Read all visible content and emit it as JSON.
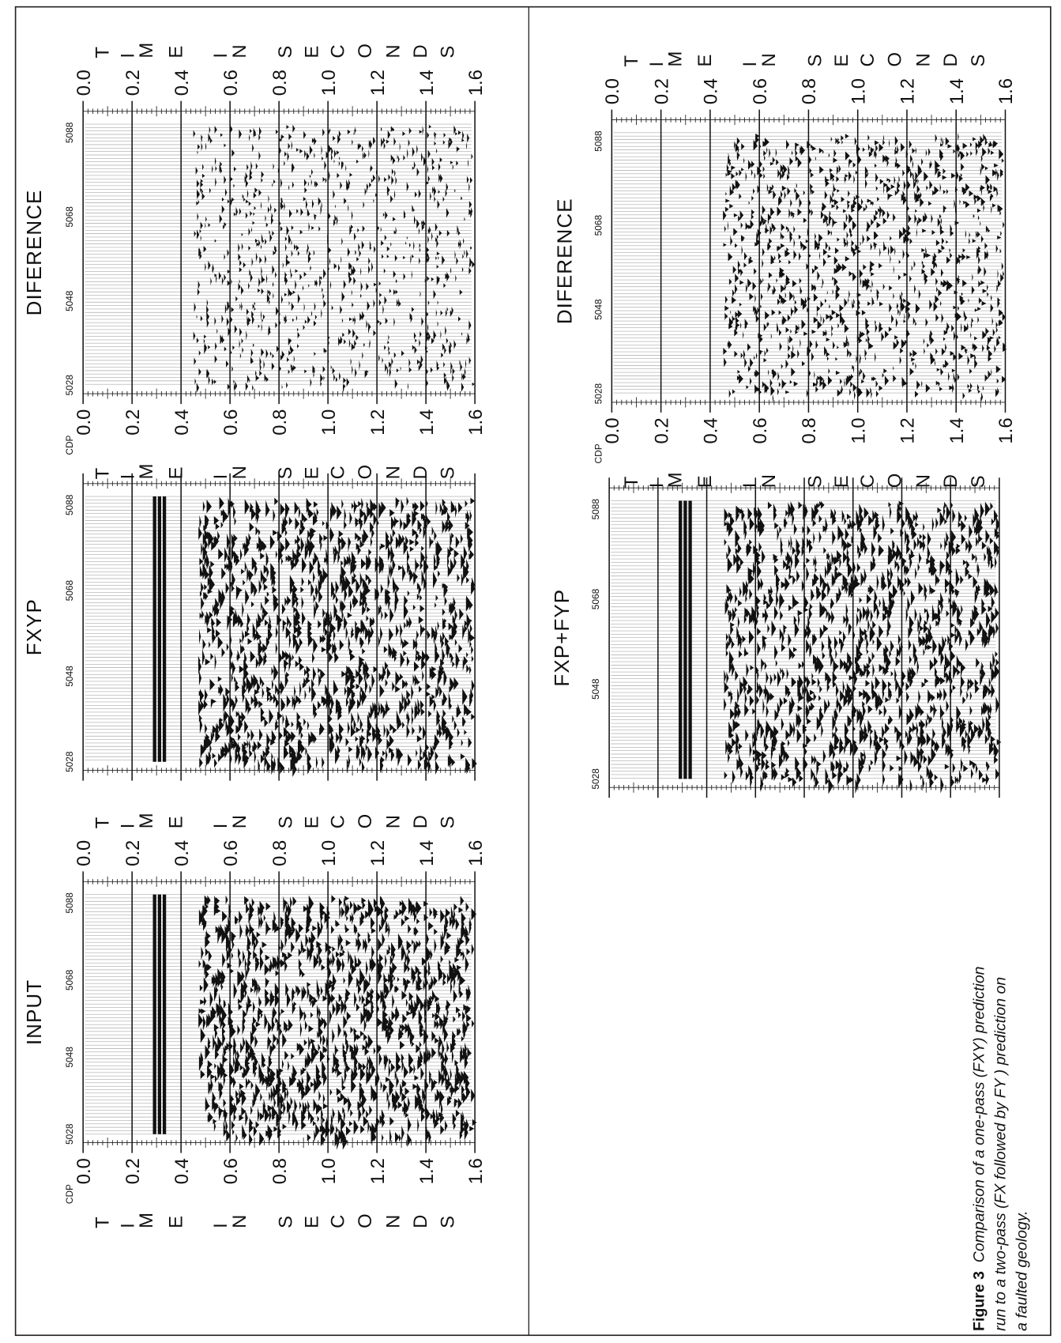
{
  "axes": {
    "cdp_label": "CDP",
    "cdp_ticks": [
      "5028",
      "5048",
      "5068",
      "5088"
    ],
    "time_ticks": [
      "0.0",
      "0.2",
      "0.4",
      "0.6",
      "0.8",
      "1.0",
      "1.2",
      "1.4",
      "1.6"
    ],
    "time_title": "TIME IN SECONDS"
  },
  "panels": [
    {
      "title": "INPUT"
    },
    {
      "title": "FXYP"
    },
    {
      "title": "DIFERENCE"
    },
    {
      "title": "DIFERENCE"
    },
    {
      "title": "FXP+FYP"
    }
  ],
  "caption": {
    "label": "Figure 3",
    "lines": [
      "Comparison of a one-pass (FXY) prediction",
      "run to a two-pass  (FX followed by FY ) prediction on",
      "a faulted geology."
    ]
  }
}
